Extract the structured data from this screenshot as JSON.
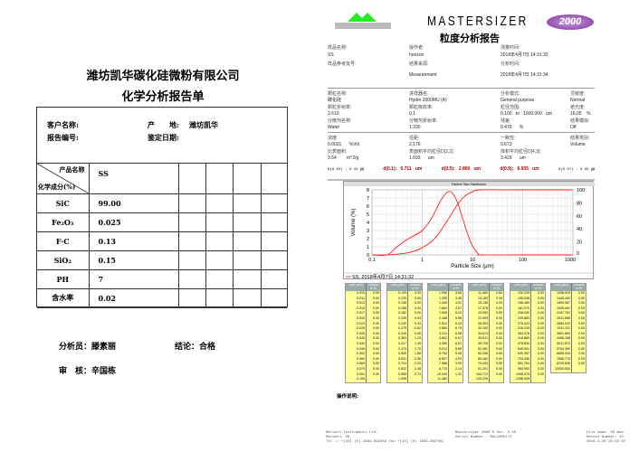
{
  "left": {
    "company": "潍坊凯华碳化硅微粉有限公司",
    "title": "化学分析报告单",
    "customer_label": "客户名称:",
    "origin_label": "产　　地:",
    "origin_value": "潍坊凯华",
    "report_no_label": "报告编号:",
    "date_label": "鉴定日期:",
    "product_name_header": "产品名称",
    "composition_header": "化学成分(%)",
    "product": "SS",
    "rows": [
      {
        "name": "SiC",
        "value": "99.00"
      },
      {
        "name": "Fe₂O₃",
        "value": "0.025"
      },
      {
        "name": "F·C",
        "value": "0.13"
      },
      {
        "name": "SiO₂",
        "value": "0.15"
      },
      {
        "name": "PH",
        "value": "7"
      },
      {
        "name": "含水率",
        "value": "0.02"
      }
    ],
    "analyst": "分析员：滕素丽",
    "conclusion": "结论：合格",
    "reviewer": "审　核：辛国栋"
  },
  "right": {
    "logo_text": "MALVERN",
    "product_name": "MASTERSIZER",
    "product_badge": "2000",
    "title": "粒度分析报告",
    "sample_name_label": "样品名称:",
    "sample_name": "SS",
    "operator_label": "操作者:",
    "operator": "horizon",
    "measure_time_label": "测量时间:",
    "measure_time": "2018年4月7日 14:31:32",
    "sample_ref_label": "样品参考批号:",
    "source_label": "结果来源:",
    "source": "Measurement",
    "analysis_time_label": "分析时间:",
    "analysis_time": "2018年4月7日 14:31:34",
    "particle_name_label": "颗粒名称:",
    "particle_name": "碳化硅",
    "accessory_label": "进样器名:",
    "accessory": "Hydro 2000MU (A)",
    "model_label": "分析模式:",
    "model": "General purpose",
    "sensitivity_label": "灵敏度:",
    "sensitivity": "Normal",
    "ri_label": "颗粒折射率:",
    "ri": "2.610",
    "absorption_label": "颗粒吸收率:",
    "absorption": "0.1",
    "range_label": "粒径范围:",
    "range": "0.100   to   1000.000   um",
    "obscuration_label": "遮光度:",
    "obscuration": "16.05    %",
    "dispersant_label": "分散剂名称:",
    "dispersant": "Water",
    "dispersant_ri_label": "分散剂折射率:",
    "dispersant_ri": "1.330",
    "residual_label": "残差:",
    "residual": "0.470      %",
    "emulation_label": "结果模拟:",
    "emulation": "Off",
    "concentration_label": "浓度:",
    "concentration": "0.0031      %Vol",
    "span_label": "径距:",
    "span": "2.176",
    "uniformity_label": "一致性:",
    "uniformity": "0.673",
    "result_units_label": "结果类别:",
    "result_units": "Volume",
    "ssa_label": "比表面积:",
    "ssa": "3.54        m^2/g",
    "d32_label": "表面积平均粒径D[3,2]:",
    "d32": "1.693      um",
    "d43_label": "体积平均粒径D[4,3]:",
    "d43": "3.429      um",
    "d003": "D(0.03) : 0.41 ㎛",
    "d01": "d(0.1):   0.711   um",
    "d05": "d(0.5):   2.860   um",
    "d09": "d(0.9):   6.935   um",
    "d097": "D(0.97) : 8.05 ㎛",
    "table_header_size": "Size (μm)",
    "table_header_vol": "Volume In %",
    "notes_label": "操作说明:",
    "footer_left": [
      "Malvern Instruments Ltd.",
      "Malvern, UK",
      "Tel := +[44] (0) 1684-892456 Fax +[44] (0) 1684-892789"
    ],
    "footer_mid": [
      "Mastersizer 2000 E Ver. 5.40",
      "Serial Number : MAL1005172"
    ],
    "footer_right": [
      "File name: SS.mea",
      "Record Number: 43",
      "2018-4-26 16:02:37"
    ]
  },
  "chart_data": {
    "type": "line",
    "title": "Particle Size Distribution",
    "xlabel": "Particle Size (μm)",
    "ylabel": "Volume (%)",
    "xscale": "log",
    "xlim": [
      0.1,
      1000
    ],
    "ylim": [
      0,
      8
    ],
    "y2lim": [
      0,
      100
    ],
    "xticks": [
      "0.1",
      "1",
      "10",
      "100",
      "1000"
    ],
    "yticks": [
      "0",
      "1",
      "2",
      "3",
      "4",
      "5",
      "6",
      "7",
      "8"
    ],
    "y2ticks": [
      "0",
      "20",
      "40",
      "60",
      "80",
      "100"
    ],
    "grid": true,
    "color": "#ff2020",
    "legend": "SS, 2018年4月7日 14:31:32",
    "series": [
      {
        "axis": "left",
        "x": [
          0.1,
          0.2,
          0.3,
          0.5,
          0.7,
          1,
          1.5,
          2,
          2.5,
          3,
          3.5,
          4,
          5,
          6,
          8,
          10,
          13,
          15,
          100,
          1000
        ],
        "y": [
          0,
          0,
          0.9,
          1.9,
          2.4,
          3.0,
          4.4,
          5.9,
          7.0,
          7.6,
          7.8,
          7.6,
          6.5,
          5.0,
          2.6,
          1.1,
          0.15,
          0,
          0,
          0
        ]
      },
      {
        "axis": "right",
        "x": [
          0.1,
          0.2,
          0.3,
          0.5,
          0.7,
          1,
          1.5,
          2,
          3,
          4,
          5,
          7,
          10,
          15,
          100,
          1000
        ],
        "y": [
          0,
          0,
          1,
          3,
          6,
          11,
          20,
          30,
          50,
          65,
          77,
          90,
          97,
          100,
          100,
          100
        ]
      }
    ]
  },
  "psd_table": [
    {
      "size": [
        "0.010",
        "0.011",
        "0.013",
        "0.015",
        "0.017",
        "0.020",
        "0.023",
        "0.026",
        "0.030",
        "0.035",
        "0.040",
        "0.046",
        "0.052",
        "0.060",
        "0.069",
        "0.079",
        "0.091",
        "0.105"
      ],
      "vol": [
        "0.00",
        "0.00",
        "0.00",
        "0.00",
        "0.00",
        "0.00",
        "0.00",
        "0.00",
        "0.00",
        "0.00",
        "0.00",
        "0.00",
        "0.00",
        "0.00",
        "0.00",
        "0.00",
        "0.00",
        ""
      ]
    },
    {
      "size": [
        "0.105",
        "0.120",
        "0.138",
        "0.158",
        "0.182",
        "0.209",
        "0.240",
        "0.275",
        "0.316",
        "0.363",
        "0.417",
        "0.479",
        "0.550",
        "0.631",
        "0.724",
        "0.832",
        "0.955",
        "1.096"
      ],
      "vol": [
        "0.00",
        "0.00",
        "0.00",
        "0.00",
        "0.00",
        "0.04",
        "0.33",
        "0.62",
        "0.95",
        "1.23",
        "1.49",
        "1.70",
        "1.88",
        "2.06",
        "2.25",
        "2.48",
        "2.73",
        ""
      ]
    },
    {
      "size": [
        "1.096",
        "1.259",
        "1.445",
        "1.660",
        "1.905",
        "2.188",
        "2.512",
        "2.884",
        "3.311",
        "3.802",
        "4.365",
        "5.012",
        "5.754",
        "6.607",
        "7.586",
        "8.710",
        "10.000",
        "11.482"
      ],
      "vol": [
        "3.06",
        "3.45",
        "4.01",
        "4.57",
        "5.24",
        "5.96",
        "6.43",
        "6.79",
        "6.98",
        "6.97",
        "6.51",
        "5.89",
        "5.05",
        "4.09",
        "3.09",
        "2.14",
        "1.31",
        ""
      ]
    },
    {
      "size": [
        "11.482",
        "13.183",
        "15.136",
        "17.378",
        "19.953",
        "22.909",
        "26.303",
        "30.200",
        "34.674",
        "39.811",
        "45.709",
        "52.481",
        "60.256",
        "69.183",
        "79.433",
        "91.201",
        "104.713",
        "120.226"
      ],
      "vol": [
        "0.60",
        "0.16",
        "0.03",
        "0.00",
        "0.00",
        "0.00",
        "0.00",
        "0.00",
        "0.00",
        "0.00",
        "0.00",
        "0.00",
        "0.00",
        "0.00",
        "0.00",
        "0.00",
        "0.00",
        ""
      ]
    },
    {
      "size": [
        "120.226",
        "138.038",
        "158.489",
        "181.970",
        "208.930",
        "239.883",
        "275.423",
        "316.228",
        "363.078",
        "416.869",
        "478.630",
        "549.541",
        "630.957",
        "724.436",
        "831.764",
        "954.993",
        "1096.478",
        "1258.925"
      ],
      "vol": [
        "0.00",
        "0.00",
        "0.00",
        "0.00",
        "0.00",
        "0.00",
        "0.00",
        "0.00",
        "0.00",
        "0.00",
        "0.00",
        "0.00",
        "0.00",
        "0.00",
        "0.00",
        "0.00",
        "0.00",
        ""
      ]
    },
    {
      "size": [
        "1258.925",
        "1445.440",
        "1659.587",
        "1905.461",
        "2187.762",
        "2511.886",
        "2884.032",
        "3311.311",
        "3801.894",
        "4365.158",
        "5011.872",
        "5754.399",
        "6606.934",
        "7585.776",
        "8709.636",
        "10000.000"
      ],
      "vol": [
        "0.00",
        "0.00",
        "0.00",
        "0.00",
        "0.00",
        "0.00",
        "0.00",
        "0.00",
        "0.00",
        "0.00",
        "0.00",
        "0.00",
        "0.00",
        "0.00",
        "0.00",
        ""
      ]
    }
  ]
}
